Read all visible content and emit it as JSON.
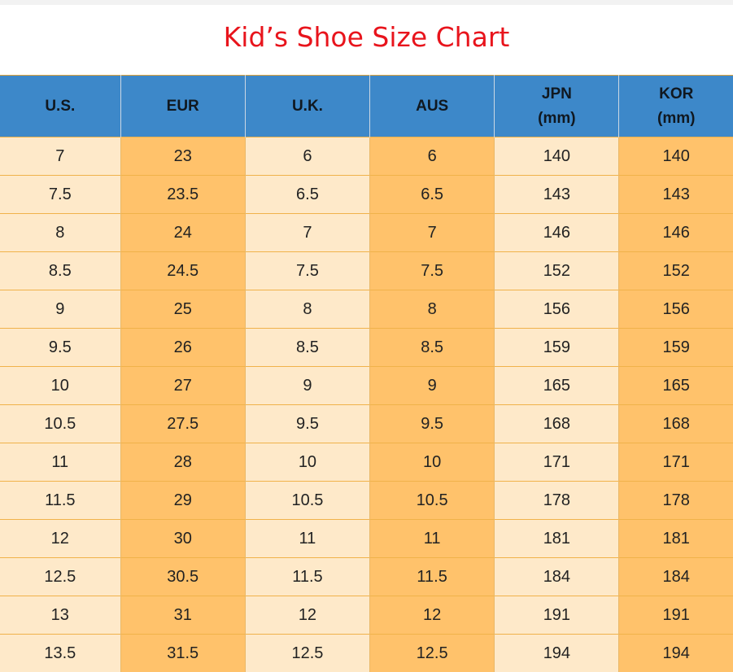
{
  "title": "Kid’s Shoe Size Chart",
  "colors": {
    "title": "#e8141c",
    "header_bg": "#3d88c9",
    "cell_light": "#fee9c9",
    "cell_dark": "#ffc26b"
  },
  "table": {
    "headers": [
      {
        "line1": "U.S.",
        "line2": ""
      },
      {
        "line1": "EUR",
        "line2": ""
      },
      {
        "line1": "U.K.",
        "line2": ""
      },
      {
        "line1": "AUS",
        "line2": ""
      },
      {
        "line1": "JPN",
        "line2": "(mm)"
      },
      {
        "line1": "KOR",
        "line2": "(mm)"
      }
    ],
    "rows": [
      [
        "7",
        "23",
        "6",
        "6",
        "140",
        "140"
      ],
      [
        "7.5",
        "23.5",
        "6.5",
        "6.5",
        "143",
        "143"
      ],
      [
        "8",
        "24",
        "7",
        "7",
        "146",
        "146"
      ],
      [
        "8.5",
        "24.5",
        "7.5",
        "7.5",
        "152",
        "152"
      ],
      [
        "9",
        "25",
        "8",
        "8",
        "156",
        "156"
      ],
      [
        "9.5",
        "26",
        "8.5",
        "8.5",
        "159",
        "159"
      ],
      [
        "10",
        "27",
        "9",
        "9",
        "165",
        "165"
      ],
      [
        "10.5",
        "27.5",
        "9.5",
        "9.5",
        "168",
        "168"
      ],
      [
        "11",
        "28",
        "10",
        "10",
        "171",
        "171"
      ],
      [
        "11.5",
        "29",
        "10.5",
        "10.5",
        "178",
        "178"
      ],
      [
        "12",
        "30",
        "11",
        "11",
        "181",
        "181"
      ],
      [
        "12.5",
        "30.5",
        "11.5",
        "11.5",
        "184",
        "184"
      ],
      [
        "13",
        "31",
        "12",
        "12",
        "191",
        "191"
      ],
      [
        "13.5",
        "31.5",
        "12.5",
        "12.5",
        "194",
        "194"
      ]
    ]
  }
}
